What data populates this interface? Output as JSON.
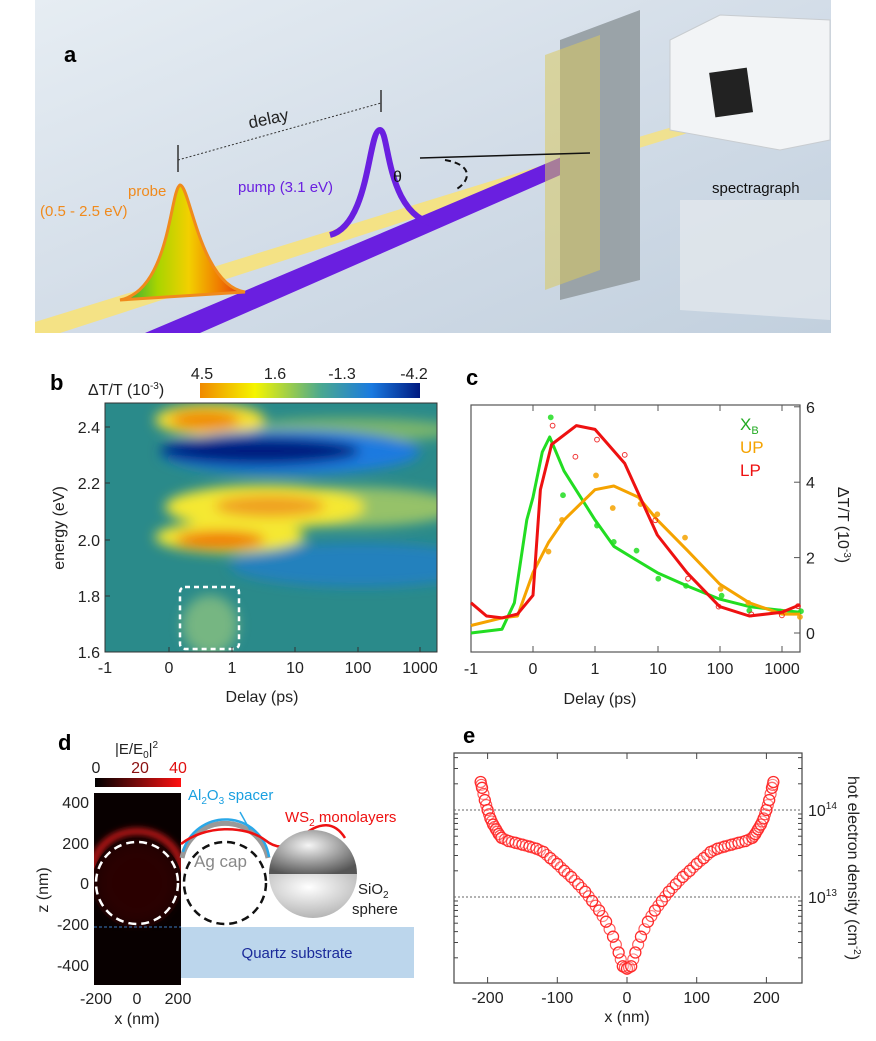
{
  "panels": {
    "a": {
      "label": "a",
      "delay_label": "delay",
      "pump_label": "pump (3.1 eV)",
      "probe_label": "probe",
      "probe_range": "(0.5 - 2.5 eV)",
      "angle_label": "θ",
      "spectrograph_label": "spectragraph",
      "colors": {
        "probe": "#f08a1c",
        "pump": "#6a1fe0",
        "beam": "#f7e27a"
      }
    },
    "b": {
      "label": "b"
    },
    "c": {
      "label": "c"
    },
    "d": {
      "label": "d",
      "spacer_label": {
        "main": "Al",
        "sub1": "2",
        "mid": "O",
        "sub2": "3",
        "rest": " spacer"
      },
      "ws2_label": {
        "main": "WS",
        "sub": "2",
        "rest": " monolayers"
      },
      "ag_label": "Ag cap",
      "sio2_label": {
        "main": "SiO",
        "sub": "2",
        "line2": "sphere"
      },
      "substrate_label": "Quartz substrate"
    },
    "e": {
      "label": "e"
    }
  },
  "chart_data": [
    {
      "panel": "b",
      "type": "heatmap",
      "xlabel": "Delay (ps)",
      "ylabel": "energy (eV)",
      "xticks": [
        "-1",
        "0",
        "1",
        "10",
        "100",
        "1000"
      ],
      "xscale": "linear from -1 to 1, log above 1",
      "yticks": [
        "2.4",
        "2.2",
        "2.0",
        "1.8",
        "1.6"
      ],
      "ylim": [
        1.6,
        2.48
      ],
      "colorbar": {
        "title": "ΔT/T (10",
        "title_exp": "-3",
        "title_close": ")",
        "ticks": [
          "4.5",
          "1.6",
          "-1.3",
          "-4.2"
        ],
        "colors": [
          "#f08a00",
          "#f5f500",
          "#2a9a8a",
          "#1a7ae0",
          "#001a80"
        ]
      },
      "background_color": "#2a8a8a",
      "highlight_box": {
        "delay_range_ps": [
          0.2,
          1.2
        ],
        "energy_range_eV": [
          1.61,
          1.83
        ]
      }
    },
    {
      "panel": "c",
      "type": "line",
      "xlabel": "Delay (ps)",
      "ylabel": "ΔT/T (10",
      "ylabel_exp": "-3",
      "ylabel_close": ")",
      "xticks": [
        "-1",
        "0",
        "1",
        "10",
        "100",
        "1000"
      ],
      "yticks": [
        "6",
        "4",
        "2",
        "0"
      ],
      "ylim": [
        -0.4,
        6
      ],
      "xlim": [
        -1,
        1950
      ],
      "legend_position": "top-right",
      "series": [
        {
          "name": "X",
          "name_sub": "B",
          "color": "#22dd22",
          "x": [
            -1,
            -0.5,
            -0.3,
            -0.1,
            0,
            0.15,
            0.27,
            0.5,
            1,
            2,
            5,
            10,
            30,
            100,
            300,
            1000,
            1950
          ],
          "y": [
            0.0,
            0.1,
            0.8,
            3.0,
            3.6,
            4.8,
            5.2,
            4.3,
            3.0,
            2.3,
            1.9,
            1.6,
            1.25,
            0.9,
            0.7,
            0.6,
            0.55
          ]
        },
        {
          "name": "UP",
          "color": "#f5a300",
          "x": [
            -1,
            -0.5,
            -0.25,
            0,
            0.25,
            0.5,
            1,
            2,
            5,
            10,
            30,
            100,
            300,
            1000,
            1950
          ],
          "y": [
            0.2,
            0.4,
            0.45,
            1.6,
            2.4,
            3.0,
            3.8,
            3.9,
            3.6,
            3.0,
            2.2,
            1.3,
            0.8,
            0.5,
            0.5
          ]
        },
        {
          "name": "LP",
          "color": "#ee1111",
          "x": [
            -1,
            -0.75,
            -0.5,
            -0.25,
            0,
            0.12,
            0.3,
            0.7,
            1,
            3,
            10,
            30,
            100,
            300,
            1000,
            1950
          ],
          "y": [
            0.8,
            0.45,
            0.4,
            0.5,
            1.0,
            3.8,
            5.0,
            5.5,
            5.4,
            4.5,
            2.6,
            1.6,
            0.7,
            0.45,
            0.55,
            0.75
          ]
        }
      ]
    },
    {
      "panel": "d",
      "type": "heatmap",
      "title": "|E/E",
      "title_sub": "0",
      "title_end": "|",
      "title_exp": "2",
      "xlabel": "x (nm)",
      "ylabel": "z (nm)",
      "xticks": [
        "-200",
        "0",
        "200"
      ],
      "yticks": [
        "400",
        "200",
        "0",
        "-200",
        "-400"
      ],
      "xlim": [
        -200,
        200
      ],
      "ylim": [
        -500,
        450
      ],
      "colorbar": {
        "ticks": [
          "0",
          "20",
          "40"
        ],
        "colors": [
          "#000000",
          "#7a0a0a",
          "#ff1010"
        ]
      }
    },
    {
      "panel": "e",
      "type": "scatter",
      "xlabel": "x (nm)",
      "ylabel": "hot electron density (cm",
      "ylabel_exp": "-2",
      "ylabel_close": ")",
      "xticks": [
        "-200",
        "-100",
        "0",
        "100",
        "200"
      ],
      "yticks": [
        {
          "base": "10",
          "exp": "14"
        },
        {
          "base": "10",
          "exp": "13"
        }
      ],
      "yscale": "log",
      "xlim": [
        -250,
        250
      ],
      "ylim": [
        1030000000000.0,
        450000000000000.0
      ],
      "grid": "dotted lines at 1e13 and 1e14",
      "color": "#ff2a2a",
      "x": [
        -210,
        -208,
        -204,
        -200,
        -196,
        -192,
        -188,
        -184,
        -180,
        -170,
        -160,
        -150,
        -140,
        -130,
        -120,
        -110,
        -100,
        -90,
        -80,
        -70,
        -60,
        -50,
        -40,
        -30,
        -20,
        -12,
        -6,
        0,
        6,
        12,
        20,
        30,
        40,
        50,
        60,
        70,
        80,
        90,
        100,
        110,
        120,
        130,
        140,
        150,
        160,
        170,
        180,
        184,
        188,
        192,
        196,
        200,
        204,
        208,
        210
      ],
      "y": [
        210000000000000.0,
        180000000000000.0,
        130000000000000.0,
        100000000000000.0,
        80000000000000.0,
        68000000000000.0,
        60000000000000.0,
        53000000000000.0,
        48000000000000.0,
        44000000000000.0,
        42000000000000.0,
        40000000000000.0,
        38000000000000.0,
        36000000000000.0,
        33000000000000.0,
        28000000000000.0,
        24000000000000.0,
        20000000000000.0,
        17000000000000.0,
        14000000000000.0,
        11500000000000.0,
        9000000000000.0,
        7000000000000.0,
        5200000000000.0,
        3500000000000.0,
        2300000000000.0,
        1600000000000.0,
        1500000000000.0,
        1600000000000.0,
        2300000000000.0,
        3500000000000.0,
        5200000000000.0,
        7000000000000.0,
        9000000000000.0,
        11500000000000.0,
        14000000000000.0,
        17000000000000.0,
        20000000000000.0,
        24000000000000.0,
        28000000000000.0,
        33000000000000.0,
        36000000000000.0,
        38000000000000.0,
        40000000000000.0,
        42000000000000.0,
        44000000000000.0,
        48000000000000.0,
        53000000000000.0,
        60000000000000.0,
        68000000000000.0,
        80000000000000.0,
        100000000000000.0,
        130000000000000.0,
        180000000000000.0,
        210000000000000.0
      ]
    }
  ]
}
